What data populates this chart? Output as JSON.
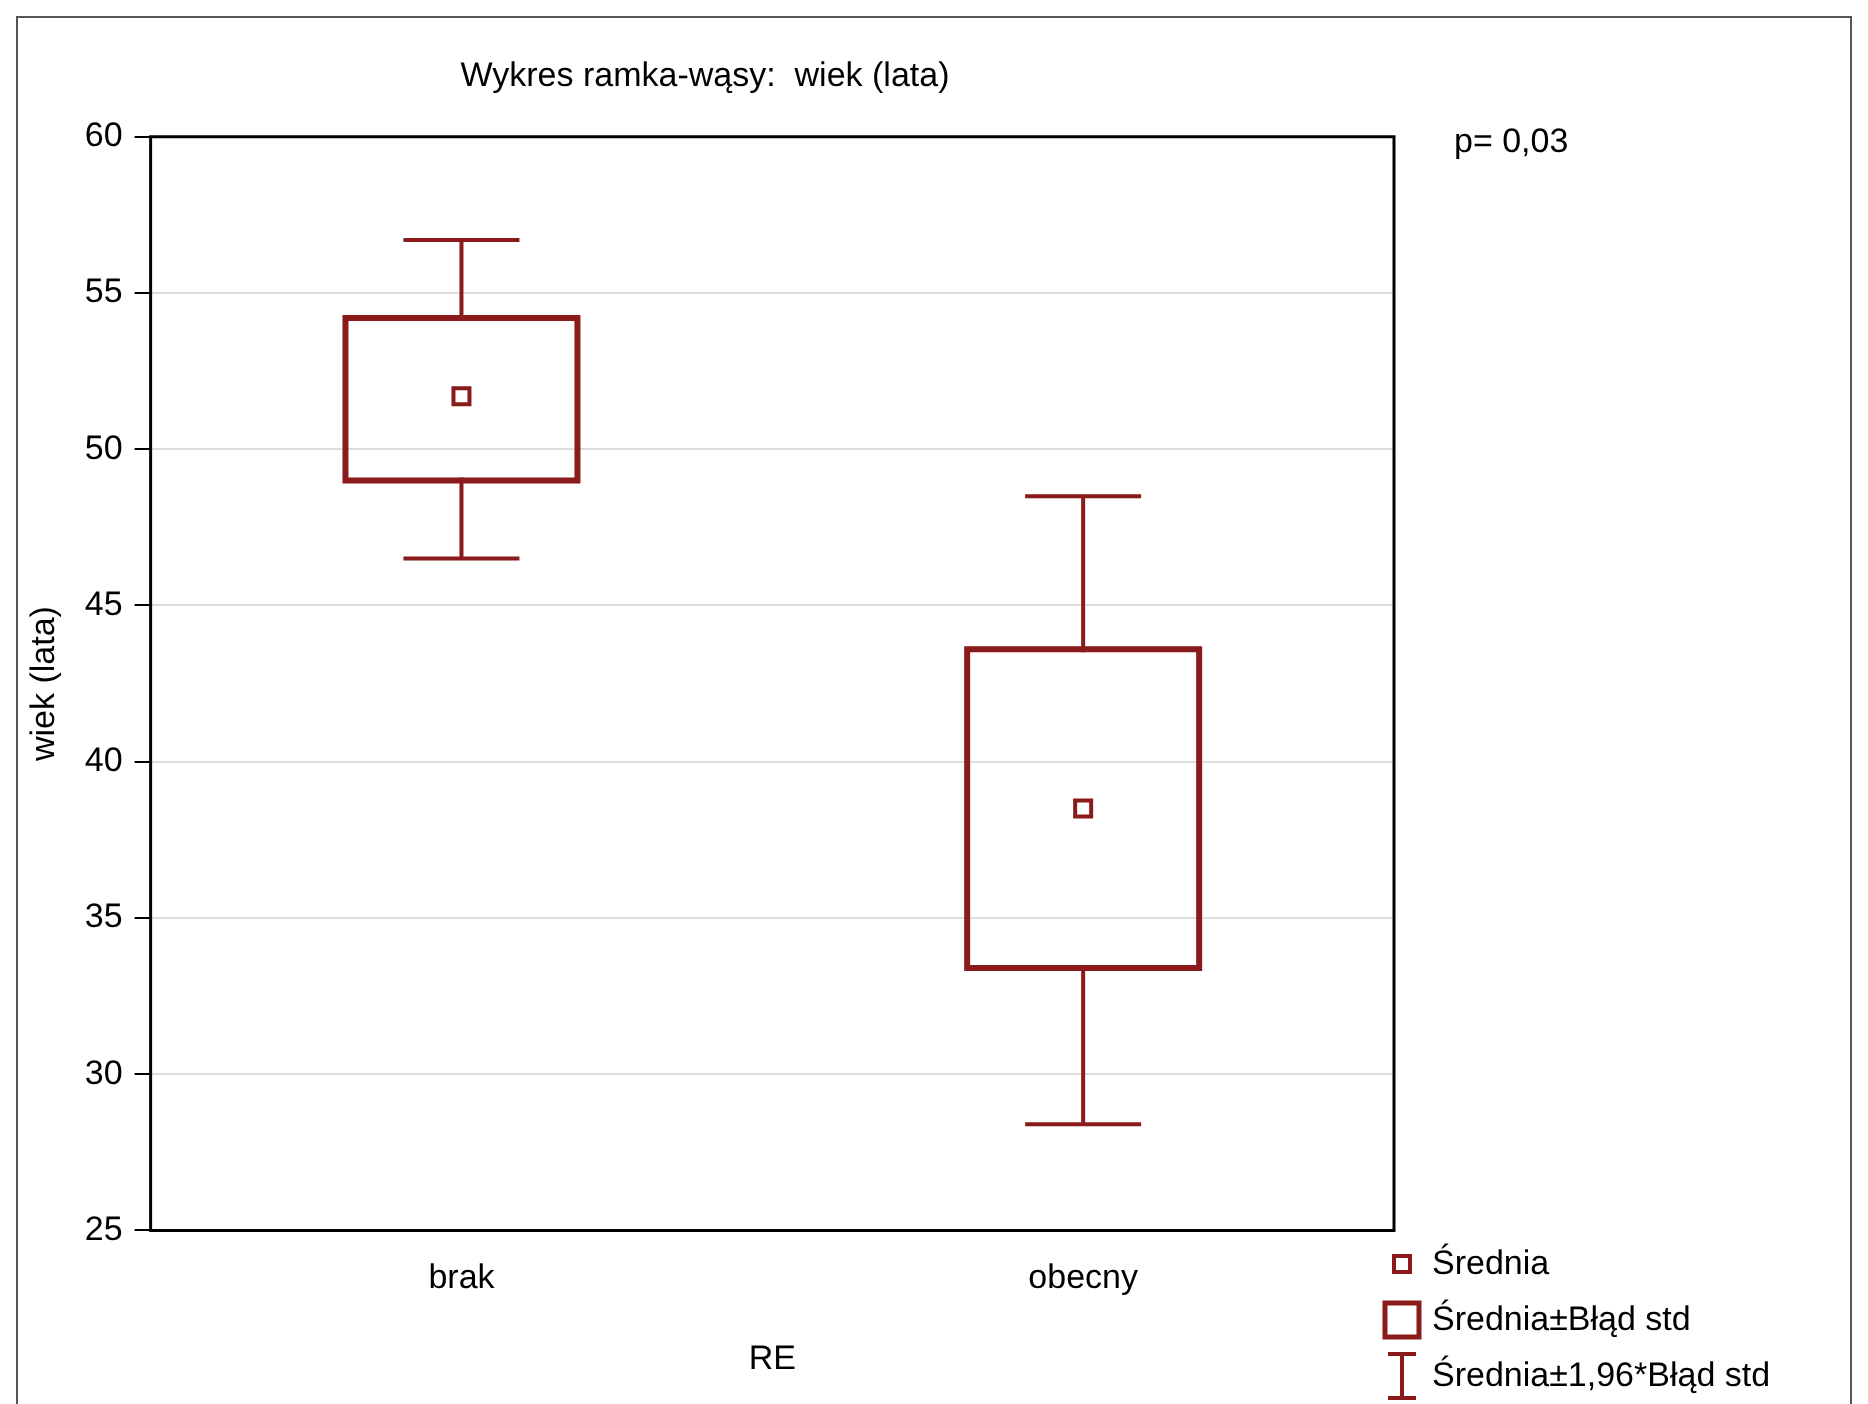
{
  "chart_data": {
    "type": "box",
    "title": "Wykres ramka-wąsy:  wiek (lata)",
    "xlabel": "RE",
    "ylabel": "wiek (lata)",
    "categories": [
      "brak",
      "obecny"
    ],
    "ylim": [
      25,
      60
    ],
    "yticks": [
      25,
      30,
      35,
      40,
      45,
      50,
      55,
      60
    ],
    "grid": "y",
    "marker": "square",
    "annotations": [
      "p= 0,03",
      "Średnia",
      "Średnia±Błąd std",
      "Średnia±1,96*Błąd std"
    ],
    "series": [
      {
        "color": "#8b1a1a",
        "boxes": [
          {
            "low": 46.5,
            "q1": 49.0,
            "median": 51.7,
            "q3": 54.2,
            "high": 56.7
          },
          {
            "low": 28.4,
            "q1": 33.4,
            "median": 38.5,
            "q3": 43.6,
            "high": 48.5
          }
        ]
      }
    ]
  }
}
